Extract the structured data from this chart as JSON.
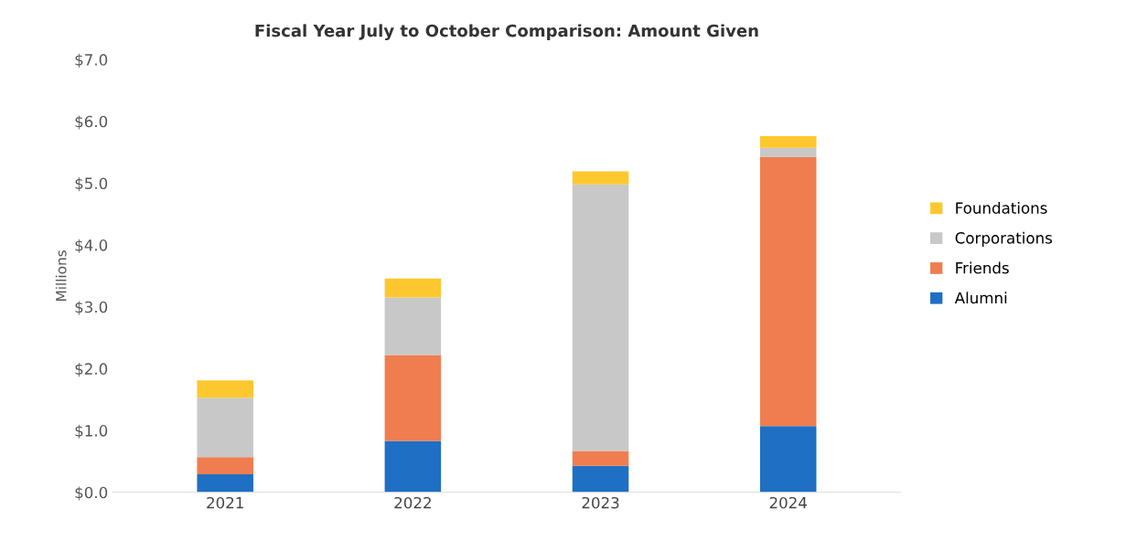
{
  "chart_data": {
    "type": "bar",
    "title": "Fiscal Year July to October Comparison: Amount Given",
    "ylabel": "Millions",
    "categories": [
      "2021",
      "2022",
      "2023",
      "2024"
    ],
    "stacked": true,
    "series": [
      {
        "name": "Alumni",
        "color": "#1f6fc5",
        "values": [
          0.29,
          0.83,
          0.43,
          1.07
        ]
      },
      {
        "name": "Friends",
        "color": "#f07d4f",
        "values": [
          0.28,
          1.39,
          0.24,
          4.35
        ]
      },
      {
        "name": "Corporations",
        "color": "#c8c8c8",
        "values": [
          0.96,
          0.93,
          4.31,
          0.15
        ]
      },
      {
        "name": "Foundations",
        "color": "#fdc82f",
        "values": [
          0.28,
          0.31,
          0.21,
          0.19
        ]
      }
    ],
    "ylim": [
      0,
      7
    ],
    "yticks": [
      {
        "value": 0,
        "label": "$0.0"
      },
      {
        "value": 1,
        "label": "$1.0"
      },
      {
        "value": 2,
        "label": "$2.0"
      },
      {
        "value": 3,
        "label": "$3.0"
      },
      {
        "value": 4,
        "label": "$4.0"
      },
      {
        "value": 5,
        "label": "$5.0"
      },
      {
        "value": 6,
        "label": "$6.0"
      },
      {
        "value": 7,
        "label": "$7.0"
      }
    ],
    "grid": false,
    "legend": "right"
  }
}
